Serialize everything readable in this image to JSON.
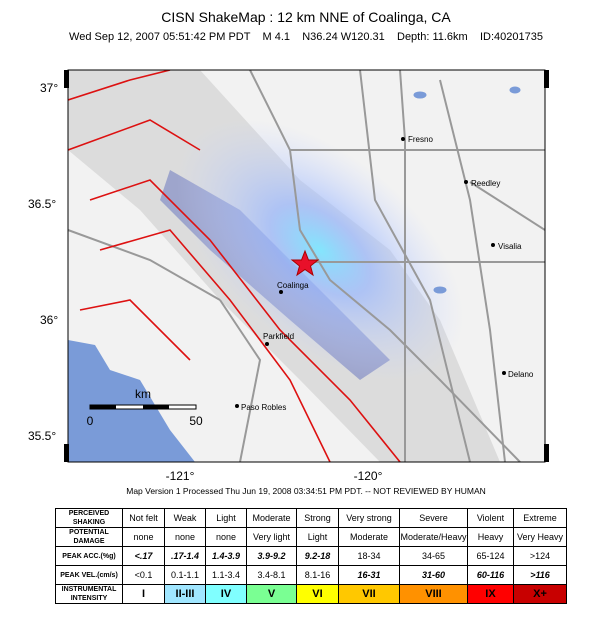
{
  "header": {
    "title": "CISN ShakeMap :  12 km NNE of Coalinga, CA",
    "subtitle": "Wed Sep 12, 2007 05:51:42 PM PDT    M 4.1    N36.24 W120.31    Depth: 11.6km    ID:40201735"
  },
  "map": {
    "lat_labels": [
      "37°",
      "36.5°",
      "36°",
      "35.5°"
    ],
    "lon_labels": [
      "-121°",
      "-120°"
    ],
    "cities": [
      "Fresno",
      "Reedley",
      "Visalia",
      "Coalinga",
      "Parkfield",
      "Delano",
      "Paso Robles"
    ],
    "scale": {
      "unit": "km",
      "start": "0",
      "end": "50"
    }
  },
  "footer": "Map Version 1 Processed Thu Jun 19, 2008 03:34:51 PM PDT. -- NOT REVIEWED BY HUMAN",
  "legend": {
    "row_headers": [
      "PERCEIVED SHAKING",
      "POTENTIAL DAMAGE",
      "PEAK ACC.(%g)",
      "PEAK VEL.(cm/s)",
      "INSTRUMENTAL INTENSITY"
    ],
    "shaking": [
      "Not felt",
      "Weak",
      "Light",
      "Moderate",
      "Strong",
      "Very strong",
      "Severe",
      "Violent",
      "Extreme"
    ],
    "damage": [
      "none",
      "none",
      "none",
      "Very light",
      "Light",
      "Moderate",
      "Moderate/Heavy",
      "Heavy",
      "Very Heavy"
    ],
    "acc": [
      "<.17",
      ".17-1.4",
      "1.4-3.9",
      "3.9-9.2",
      "9.2-18",
      "18-34",
      "34-65",
      "65-124",
      ">124"
    ],
    "vel": [
      "<0.1",
      "0.1-1.1",
      "1.1-3.4",
      "3.4-8.1",
      "8.1-16",
      "16-31",
      "31-60",
      "60-116",
      ">116"
    ],
    "intensity": [
      "I",
      "II-III",
      "IV",
      "V",
      "VI",
      "VII",
      "VIII",
      "IX",
      "X+"
    ],
    "colors": [
      "#ffffff",
      "#bfccff",
      "#a0e6ff",
      "#80ffff",
      "#7aff93",
      "#ffff00",
      "#ffc800",
      "#ff9100",
      "#ff0000",
      "#c80000"
    ]
  }
}
